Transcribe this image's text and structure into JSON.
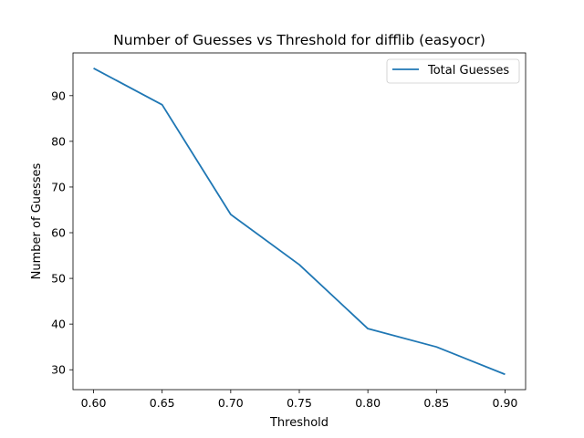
{
  "chart_data": {
    "type": "line",
    "title": "Number of Guesses vs Threshold for difflib (easyocr)",
    "xlabel": "Threshold",
    "ylabel": "Number of Guesses",
    "x": [
      0.6,
      0.65,
      0.7,
      0.75,
      0.8,
      0.85,
      0.9
    ],
    "series": [
      {
        "name": "Total Guesses",
        "values": [
          96,
          88,
          64,
          53,
          39,
          35,
          29
        ],
        "color": "#1f77b4"
      }
    ],
    "x_ticks": [
      "0.60",
      "0.65",
      "0.70",
      "0.75",
      "0.80",
      "0.85",
      "0.90"
    ],
    "y_ticks": [
      "30",
      "40",
      "50",
      "60",
      "70",
      "80",
      "90"
    ],
    "xlim": [
      0.585,
      0.915
    ],
    "ylim": [
      25.65,
      99.35
    ],
    "grid": false,
    "legend_position": "upper-right"
  }
}
